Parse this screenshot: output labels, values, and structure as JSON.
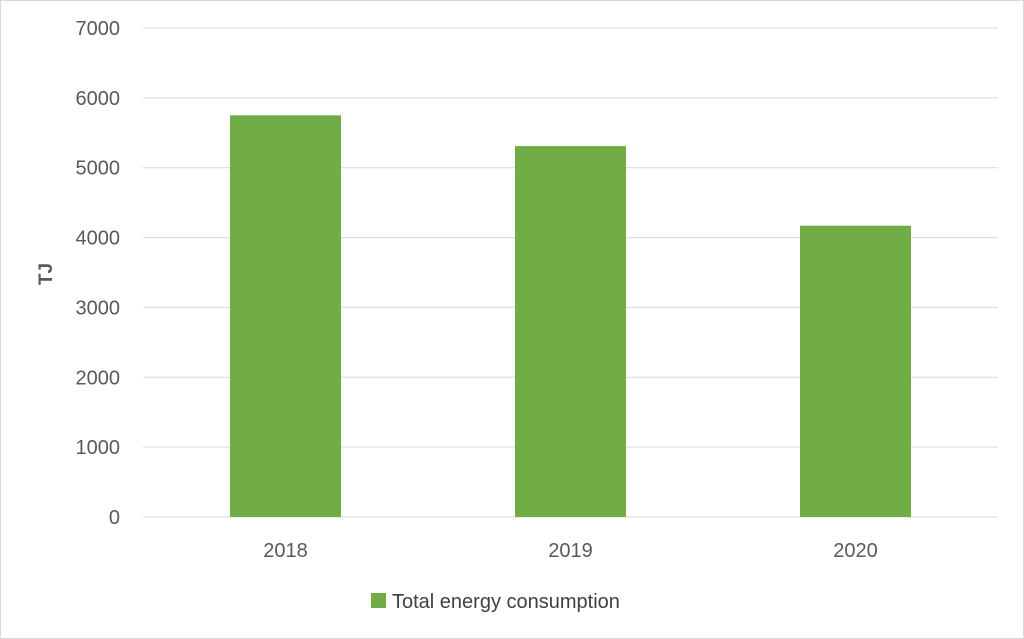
{
  "chart_data": {
    "type": "bar",
    "categories": [
      "2018",
      "2019",
      "2020"
    ],
    "series": [
      {
        "name": "Total energy consumption",
        "values": [
          5750,
          5310,
          4170
        ]
      }
    ],
    "xlabel": "",
    "ylabel": "TJ",
    "ylim": [
      0,
      7000
    ],
    "yticks": [
      "0",
      "1000",
      "2000",
      "3000",
      "4000",
      "5000",
      "6000",
      "7000"
    ],
    "grid": true,
    "legend": "bottom",
    "colors": {
      "bar": "#70ad47",
      "grid": "#d9d9d9",
      "text": "#595959"
    }
  }
}
